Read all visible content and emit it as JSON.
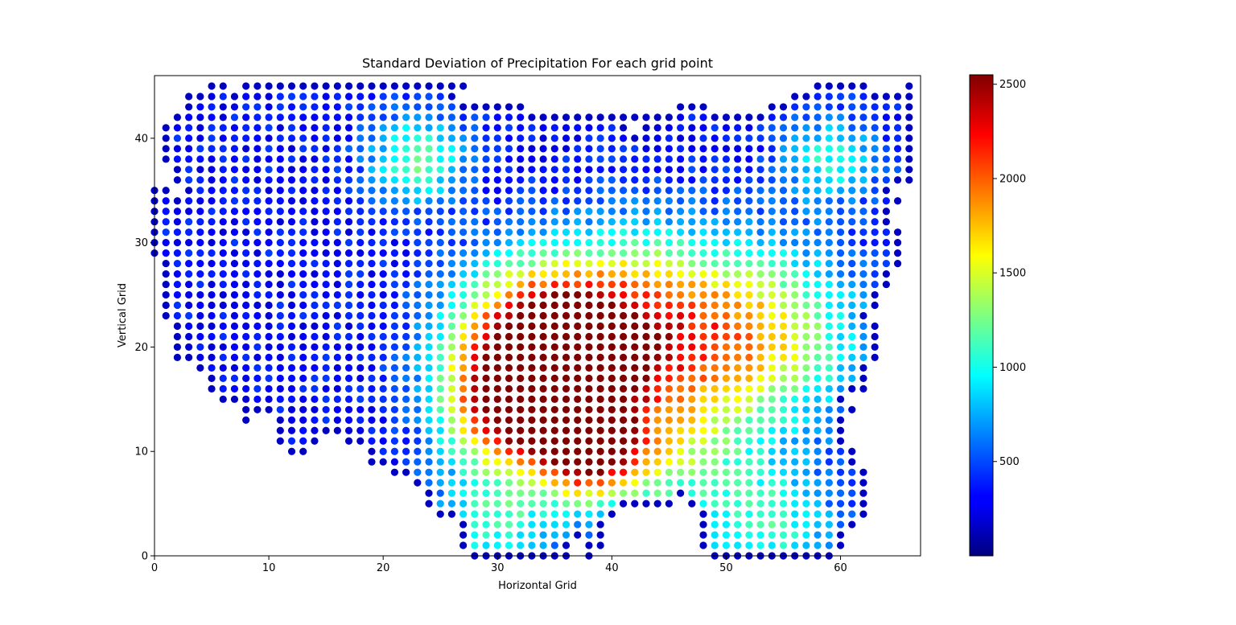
{
  "chart_data": {
    "type": "scatter",
    "title": "Standard Deviation of Precipitation For each grid point",
    "xlabel": "Horizontal Grid",
    "ylabel": "Vertical Grid",
    "xlim": [
      0,
      67
    ],
    "ylim": [
      0,
      46
    ],
    "x_ticks": [
      "0",
      "10",
      "20",
      "30",
      "40",
      "50",
      "60"
    ],
    "y_ticks": [
      "0",
      "10",
      "20",
      "30",
      "40"
    ],
    "colorbar": {
      "colormap": "jet",
      "range": [
        0,
        2550
      ],
      "tick_values": [
        500,
        1000,
        1500,
        2000,
        2500
      ],
      "tick_labels": [
        "500",
        "1000",
        "1500",
        "2000",
        "2500"
      ]
    },
    "grid": false,
    "rows": [
      {
        "y": 0,
        "spans": [
          [
            28,
            36
          ],
          [
            38,
            38
          ],
          [
            49,
            59
          ]
        ]
      },
      {
        "y": 1,
        "spans": [
          [
            27,
            36
          ],
          [
            38,
            39
          ],
          [
            48,
            60
          ]
        ]
      },
      {
        "y": 2,
        "spans": [
          [
            27,
            36
          ],
          [
            37,
            39
          ],
          [
            48,
            60
          ]
        ]
      },
      {
        "y": 3,
        "spans": [
          [
            27,
            36
          ],
          [
            37,
            39
          ],
          [
            48,
            61
          ]
        ]
      },
      {
        "y": 4,
        "spans": [
          [
            25,
            40
          ],
          [
            48,
            62
          ]
        ]
      },
      {
        "y": 5,
        "spans": [
          [
            24,
            45
          ],
          [
            47,
            62
          ]
        ]
      },
      {
        "y": 6,
        "spans": [
          [
            24,
            62
          ]
        ]
      },
      {
        "y": 7,
        "spans": [
          [
            23,
            62
          ]
        ]
      },
      {
        "y": 8,
        "spans": [
          [
            21,
            62
          ]
        ]
      },
      {
        "y": 9,
        "spans": [
          [
            19,
            61
          ]
        ]
      },
      {
        "y": 10,
        "spans": [
          [
            12,
            13
          ],
          [
            19,
            61
          ]
        ]
      },
      {
        "y": 11,
        "spans": [
          [
            11,
            14
          ],
          [
            17,
            60
          ]
        ]
      },
      {
        "y": 12,
        "spans": [
          [
            11,
            60
          ]
        ]
      },
      {
        "y": 13,
        "spans": [
          [
            8,
            8
          ],
          [
            11,
            60
          ]
        ]
      },
      {
        "y": 14,
        "spans": [
          [
            8,
            61
          ]
        ]
      },
      {
        "y": 15,
        "spans": [
          [
            6,
            60
          ]
        ]
      },
      {
        "y": 16,
        "spans": [
          [
            5,
            62
          ]
        ]
      },
      {
        "y": 17,
        "spans": [
          [
            5,
            62
          ]
        ]
      },
      {
        "y": 18,
        "spans": [
          [
            4,
            62
          ]
        ]
      },
      {
        "y": 19,
        "spans": [
          [
            2,
            63
          ]
        ]
      },
      {
        "y": 20,
        "spans": [
          [
            2,
            63
          ]
        ]
      },
      {
        "y": 21,
        "spans": [
          [
            2,
            63
          ]
        ]
      },
      {
        "y": 22,
        "spans": [
          [
            2,
            63
          ]
        ]
      },
      {
        "y": 23,
        "spans": [
          [
            1,
            62
          ]
        ]
      },
      {
        "y": 24,
        "spans": [
          [
            1,
            63
          ]
        ]
      },
      {
        "y": 25,
        "spans": [
          [
            1,
            63
          ]
        ]
      },
      {
        "y": 26,
        "spans": [
          [
            1,
            64
          ]
        ]
      },
      {
        "y": 27,
        "spans": [
          [
            1,
            64
          ]
        ]
      },
      {
        "y": 28,
        "spans": [
          [
            1,
            65
          ]
        ]
      },
      {
        "y": 29,
        "spans": [
          [
            0,
            65
          ]
        ]
      },
      {
        "y": 30,
        "spans": [
          [
            0,
            65
          ]
        ]
      },
      {
        "y": 31,
        "spans": [
          [
            0,
            65
          ]
        ]
      },
      {
        "y": 32,
        "spans": [
          [
            0,
            64
          ]
        ]
      },
      {
        "y": 33,
        "spans": [
          [
            0,
            64
          ]
        ]
      },
      {
        "y": 34,
        "spans": [
          [
            0,
            65
          ]
        ]
      },
      {
        "y": 35,
        "spans": [
          [
            0,
            1
          ],
          [
            3,
            64
          ]
        ]
      },
      {
        "y": 36,
        "spans": [
          [
            2,
            66
          ]
        ]
      },
      {
        "y": 37,
        "spans": [
          [
            2,
            66
          ]
        ]
      },
      {
        "y": 38,
        "spans": [
          [
            1,
            66
          ]
        ]
      },
      {
        "y": 39,
        "spans": [
          [
            1,
            66
          ]
        ]
      },
      {
        "y": 40,
        "spans": [
          [
            1,
            66
          ]
        ]
      },
      {
        "y": 41,
        "spans": [
          [
            1,
            41
          ],
          [
            43,
            66
          ]
        ]
      },
      {
        "y": 42,
        "spans": [
          [
            2,
            66
          ]
        ]
      },
      {
        "y": 43,
        "spans": [
          [
            3,
            32
          ],
          [
            46,
            48
          ],
          [
            54,
            66
          ]
        ]
      },
      {
        "y": 44,
        "spans": [
          [
            3,
            26
          ],
          [
            56,
            66
          ]
        ]
      },
      {
        "y": 45,
        "spans": [
          [
            5,
            6
          ],
          [
            8,
            27
          ],
          [
            58,
            62
          ],
          [
            66,
            66
          ]
        ]
      }
    ],
    "hotspots": [
      {
        "x": 33,
        "y": 21,
        "value": 2150,
        "radius": 5
      },
      {
        "x": 31,
        "y": 14,
        "value": 2100,
        "radius": 4
      },
      {
        "x": 38,
        "y": 10,
        "value": 2350,
        "radius": 3
      },
      {
        "x": 42,
        "y": 22,
        "value": 1850,
        "radius": 6
      },
      {
        "x": 53,
        "y": 21,
        "value": 1550,
        "radius": 6
      },
      {
        "x": 36,
        "y": 17,
        "value": 1850,
        "radius": 4
      },
      {
        "x": 30,
        "y": 3,
        "value": 1050,
        "radius": 4
      },
      {
        "x": 54,
        "y": 3,
        "value": 1050,
        "radius": 4
      },
      {
        "x": 23,
        "y": 38,
        "value": 1200,
        "radius": 3
      },
      {
        "x": 59,
        "y": 38,
        "value": 1000,
        "radius": 3
      },
      {
        "x": 45,
        "y": 10,
        "value": 1150,
        "radius": 5
      }
    ],
    "base_value": 330,
    "edge_value": 120
  }
}
